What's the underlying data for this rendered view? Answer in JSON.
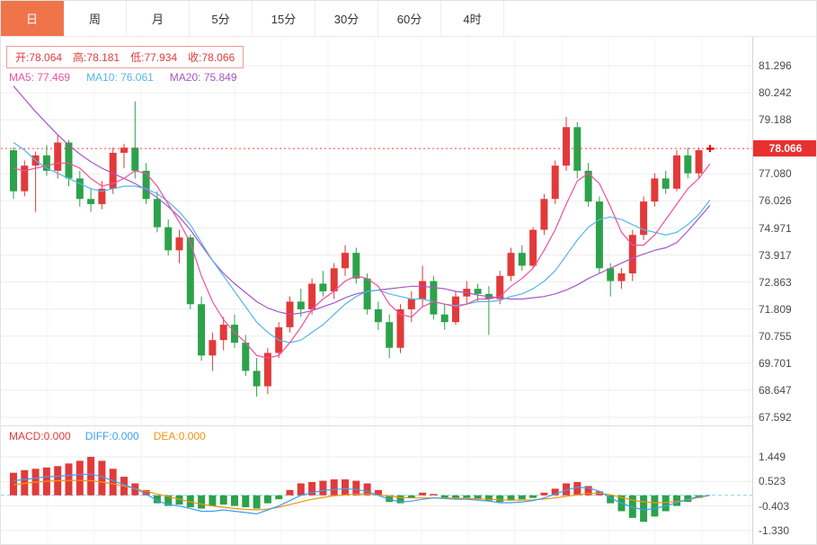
{
  "tabs": [
    {
      "label": "日",
      "active": true
    },
    {
      "label": "周",
      "active": false
    },
    {
      "label": "月",
      "active": false
    },
    {
      "label": "5分",
      "active": false
    },
    {
      "label": "15分",
      "active": false
    },
    {
      "label": "30分",
      "active": false
    },
    {
      "label": "60分",
      "active": false
    },
    {
      "label": "4时",
      "active": false
    }
  ],
  "ohlc": {
    "open_label": "开:",
    "open_value": "78.064",
    "high_label": "高:",
    "high_value": "78.181",
    "low_label": "低:",
    "low_value": "77.934",
    "close_label": "收:",
    "close_value": "78.066"
  },
  "ma": {
    "ma5_label": "MA5:",
    "ma5_value": "77.469",
    "ma10_label": "MA10:",
    "ma10_value": "76.061",
    "ma20_label": "MA20:",
    "ma20_value": "75.849"
  },
  "macd_info": {
    "macd_label": "MACD:",
    "macd_value": "0.000",
    "diff_label": "DIFF:",
    "diff_value": "0.000",
    "dea_label": "DEA:",
    "dea_value": "0.000"
  },
  "colors": {
    "up": "#e23a3a",
    "down": "#2ca24a",
    "ma5": "#ef4fa0",
    "ma10": "#56b6e7",
    "ma20": "#a855c8",
    "diff": "#3b9ff0",
    "dea": "#f0930f",
    "tab_active_bg": "#f0744a",
    "price_tag_bg": "#e83030",
    "price_line": "#ff4040",
    "zero_line": "#7dd8e8",
    "grid": "#ededed",
    "grid_v": "#f4f4f4"
  },
  "chart_data": {
    "type": "candlestick",
    "title": "",
    "main": {
      "axis_top": 81.296,
      "axis_bottom": 67.592,
      "y_ticks": [
        81.296,
        80.242,
        79.188,
        77.08,
        76.026,
        74.971,
        73.917,
        72.863,
        71.809,
        70.755,
        69.701,
        68.647,
        67.592
      ],
      "current_price": 78.066,
      "current_price_label": "78.066",
      "candles": [
        [
          78.0,
          78.12,
          76.1,
          76.4
        ],
        [
          76.4,
          77.6,
          76.2,
          77.4
        ],
        [
          77.4,
          77.95,
          75.6,
          77.8
        ],
        [
          77.8,
          78.2,
          77.0,
          77.2
        ],
        [
          77.2,
          78.6,
          76.9,
          78.3
        ],
        [
          78.3,
          78.4,
          76.6,
          76.9
        ],
        [
          76.9,
          77.2,
          75.8,
          76.1
        ],
        [
          76.1,
          76.5,
          75.6,
          75.9
        ],
        [
          75.9,
          76.8,
          75.7,
          76.5
        ],
        [
          76.5,
          78.1,
          76.3,
          77.9
        ],
        [
          77.9,
          78.25,
          77.3,
          78.1
        ],
        [
          78.1,
          79.9,
          76.9,
          77.2
        ],
        [
          77.2,
          77.5,
          75.9,
          76.1
        ],
        [
          76.1,
          76.4,
          74.8,
          75.0
        ],
        [
          75.0,
          75.3,
          73.9,
          74.1
        ],
        [
          74.1,
          74.9,
          73.6,
          74.6
        ],
        [
          74.6,
          74.7,
          71.8,
          72.0
        ],
        [
          72.0,
          72.3,
          69.8,
          70.0
        ],
        [
          70.0,
          70.9,
          69.4,
          70.6
        ],
        [
          70.6,
          71.5,
          70.2,
          71.2
        ],
        [
          71.2,
          71.6,
          70.3,
          70.5
        ],
        [
          70.5,
          70.8,
          69.2,
          69.4
        ],
        [
          69.4,
          69.9,
          68.4,
          68.8
        ],
        [
          68.8,
          70.3,
          68.5,
          70.1
        ],
        [
          70.1,
          71.3,
          69.9,
          71.1
        ],
        [
          71.1,
          72.3,
          70.9,
          72.1
        ],
        [
          72.1,
          72.6,
          71.5,
          71.8
        ],
        [
          71.8,
          73.0,
          71.6,
          72.8
        ],
        [
          72.8,
          73.3,
          72.3,
          72.5
        ],
        [
          72.5,
          73.6,
          72.2,
          73.4
        ],
        [
          73.4,
          74.3,
          73.1,
          74.0
        ],
        [
          74.0,
          74.2,
          72.8,
          73.0
        ],
        [
          73.0,
          73.2,
          71.6,
          71.8
        ],
        [
          71.8,
          72.1,
          71.0,
          71.3
        ],
        [
          71.3,
          71.6,
          69.9,
          70.3
        ],
        [
          70.3,
          72.0,
          70.1,
          71.8
        ],
        [
          71.8,
          72.5,
          71.3,
          72.2
        ],
        [
          72.2,
          73.5,
          71.9,
          72.9
        ],
        [
          72.9,
          73.1,
          71.4,
          71.6
        ],
        [
          71.6,
          72.0,
          71.0,
          71.3
        ],
        [
          71.3,
          72.5,
          71.2,
          72.3
        ],
        [
          72.3,
          72.9,
          72.0,
          72.6
        ],
        [
          72.6,
          72.8,
          72.1,
          72.4
        ],
        [
          72.4,
          72.7,
          70.8,
          72.2
        ],
        [
          72.2,
          73.3,
          72.0,
          73.1
        ],
        [
          73.1,
          74.2,
          72.9,
          74.0
        ],
        [
          74.0,
          74.3,
          73.3,
          73.5
        ],
        [
          73.5,
          75.0,
          73.4,
          74.9
        ],
        [
          74.9,
          76.3,
          74.7,
          76.1
        ],
        [
          76.1,
          77.6,
          75.9,
          77.4
        ],
        [
          77.4,
          79.3,
          77.2,
          78.9
        ],
        [
          78.9,
          79.1,
          76.9,
          77.2
        ],
        [
          77.2,
          77.5,
          75.8,
          76.0
        ],
        [
          76.0,
          76.2,
          73.2,
          73.4
        ],
        [
          73.4,
          73.6,
          72.3,
          72.9
        ],
        [
          72.9,
          73.4,
          72.6,
          73.2
        ],
        [
          73.2,
          74.9,
          72.9,
          74.7
        ],
        [
          74.7,
          76.2,
          74.5,
          76.0
        ],
        [
          76.0,
          77.1,
          75.8,
          76.9
        ],
        [
          76.9,
          77.2,
          76.3,
          76.5
        ],
        [
          76.5,
          78.0,
          76.4,
          77.8
        ],
        [
          77.8,
          78.1,
          76.9,
          77.1
        ],
        [
          77.1,
          78.1,
          76.9,
          78.0
        ],
        [
          78.064,
          78.181,
          77.934,
          78.066
        ]
      ],
      "ma5": [
        77.3,
        77.2,
        77.3,
        77.4,
        77.5,
        77.5,
        77.3,
        76.9,
        76.6,
        76.7,
        76.9,
        77.2,
        77.1,
        76.6,
        75.9,
        75.2,
        74.4,
        73.1,
        72.1,
        71.4,
        70.9,
        70.5,
        70.0,
        69.9,
        70.0,
        70.5,
        71.1,
        71.8,
        72.2,
        72.5,
        72.9,
        73.1,
        73.0,
        72.7,
        72.0,
        71.6,
        71.5,
        71.9,
        72.1,
        72.0,
        71.9,
        72.0,
        72.2,
        72.2,
        72.3,
        72.7,
        73.0,
        73.4,
        74.1,
        74.9,
        75.9,
        76.8,
        77.1,
        76.7,
        75.8,
        74.8,
        74.3,
        74.3,
        74.7,
        75.3,
        75.9,
        76.5,
        76.9,
        77.469
      ],
      "ma10": [
        78.3,
        78.0,
        77.6,
        77.3,
        77.1,
        76.9,
        76.7,
        76.5,
        76.4,
        76.5,
        76.6,
        76.6,
        76.5,
        76.3,
        76.0,
        75.6,
        75.1,
        74.4,
        73.7,
        73.1,
        72.5,
        71.9,
        71.3,
        70.9,
        70.6,
        70.5,
        70.6,
        70.9,
        71.2,
        71.6,
        72.0,
        72.3,
        72.5,
        72.55,
        72.4,
        72.3,
        72.2,
        72.2,
        72.1,
        72.0,
        71.95,
        72.0,
        72.1,
        72.1,
        72.15,
        72.3,
        72.4,
        72.6,
        72.9,
        73.3,
        73.9,
        74.5,
        75.0,
        75.3,
        75.4,
        75.3,
        75.1,
        74.9,
        74.8,
        74.7,
        74.8,
        75.1,
        75.5,
        76.061
      ],
      "ma20": [
        80.5,
        80.0,
        79.5,
        79.05,
        78.6,
        78.2,
        77.85,
        77.55,
        77.3,
        77.1,
        76.9,
        76.7,
        76.45,
        76.15,
        75.8,
        75.4,
        74.9,
        74.3,
        73.7,
        73.2,
        72.8,
        72.45,
        72.1,
        71.85,
        71.7,
        71.6,
        71.65,
        71.75,
        71.9,
        72.05,
        72.25,
        72.4,
        72.5,
        72.55,
        72.6,
        72.65,
        72.7,
        72.7,
        72.65,
        72.6,
        72.5,
        72.45,
        72.35,
        72.3,
        72.25,
        72.2,
        72.2,
        72.25,
        72.3,
        72.4,
        72.55,
        72.75,
        73.0,
        73.2,
        73.4,
        73.6,
        73.8,
        73.95,
        74.1,
        74.2,
        74.4,
        74.85,
        75.35,
        75.849
      ]
    },
    "macd": {
      "axis_top": 1.449,
      "axis_bottom": -1.33,
      "y_ticks": [
        1.449,
        0.523,
        -0.403,
        -1.33
      ],
      "histogram": [
        0.85,
        0.95,
        1.0,
        1.05,
        1.1,
        1.2,
        1.3,
        1.45,
        1.3,
        1.0,
        0.7,
        0.45,
        0.2,
        -0.3,
        -0.4,
        -0.35,
        -0.45,
        -0.5,
        -0.4,
        -0.35,
        -0.4,
        -0.45,
        -0.5,
        -0.3,
        -0.15,
        0.2,
        0.45,
        0.5,
        0.55,
        0.6,
        0.6,
        0.55,
        0.45,
        0.2,
        -0.25,
        -0.3,
        -0.1,
        0.1,
        0.05,
        -0.1,
        -0.15,
        -0.1,
        -0.15,
        -0.2,
        -0.25,
        -0.2,
        -0.15,
        -0.1,
        0.1,
        0.25,
        0.45,
        0.5,
        0.35,
        0.15,
        -0.3,
        -0.6,
        -0.85,
        -1.0,
        -0.8,
        -0.6,
        -0.4,
        -0.25,
        -0.1,
        0.0
      ],
      "diff": [
        0.55,
        0.6,
        0.65,
        0.7,
        0.72,
        0.75,
        0.78,
        0.8,
        0.7,
        0.55,
        0.4,
        0.25,
        0.05,
        -0.2,
        -0.35,
        -0.4,
        -0.5,
        -0.6,
        -0.6,
        -0.55,
        -0.6,
        -0.65,
        -0.7,
        -0.55,
        -0.4,
        -0.2,
        0.0,
        0.1,
        0.18,
        0.22,
        0.25,
        0.22,
        0.15,
        0.0,
        -0.15,
        -0.25,
        -0.22,
        -0.15,
        -0.1,
        -0.12,
        -0.15,
        -0.15,
        -0.18,
        -0.22,
        -0.28,
        -0.28,
        -0.25,
        -0.2,
        -0.1,
        0.05,
        0.2,
        0.3,
        0.28,
        0.15,
        -0.1,
        -0.3,
        -0.45,
        -0.55,
        -0.5,
        -0.4,
        -0.28,
        -0.15,
        -0.05,
        0.0
      ],
      "dea": [
        0.4,
        0.45,
        0.5,
        0.53,
        0.55,
        0.56,
        0.56,
        0.55,
        0.5,
        0.43,
        0.35,
        0.25,
        0.15,
        0.05,
        -0.05,
        -0.15,
        -0.25,
        -0.33,
        -0.4,
        -0.45,
        -0.5,
        -0.53,
        -0.55,
        -0.52,
        -0.45,
        -0.35,
        -0.25,
        -0.15,
        -0.08,
        -0.02,
        0.02,
        0.05,
        0.05,
        0.02,
        -0.03,
        -0.08,
        -0.1,
        -0.1,
        -0.1,
        -0.1,
        -0.11,
        -0.12,
        -0.13,
        -0.15,
        -0.17,
        -0.18,
        -0.18,
        -0.17,
        -0.14,
        -0.1,
        -0.04,
        0.02,
        0.07,
        0.08,
        0.02,
        -0.08,
        -0.18,
        -0.25,
        -0.28,
        -0.27,
        -0.23,
        -0.17,
        -0.08,
        0.0
      ]
    }
  }
}
